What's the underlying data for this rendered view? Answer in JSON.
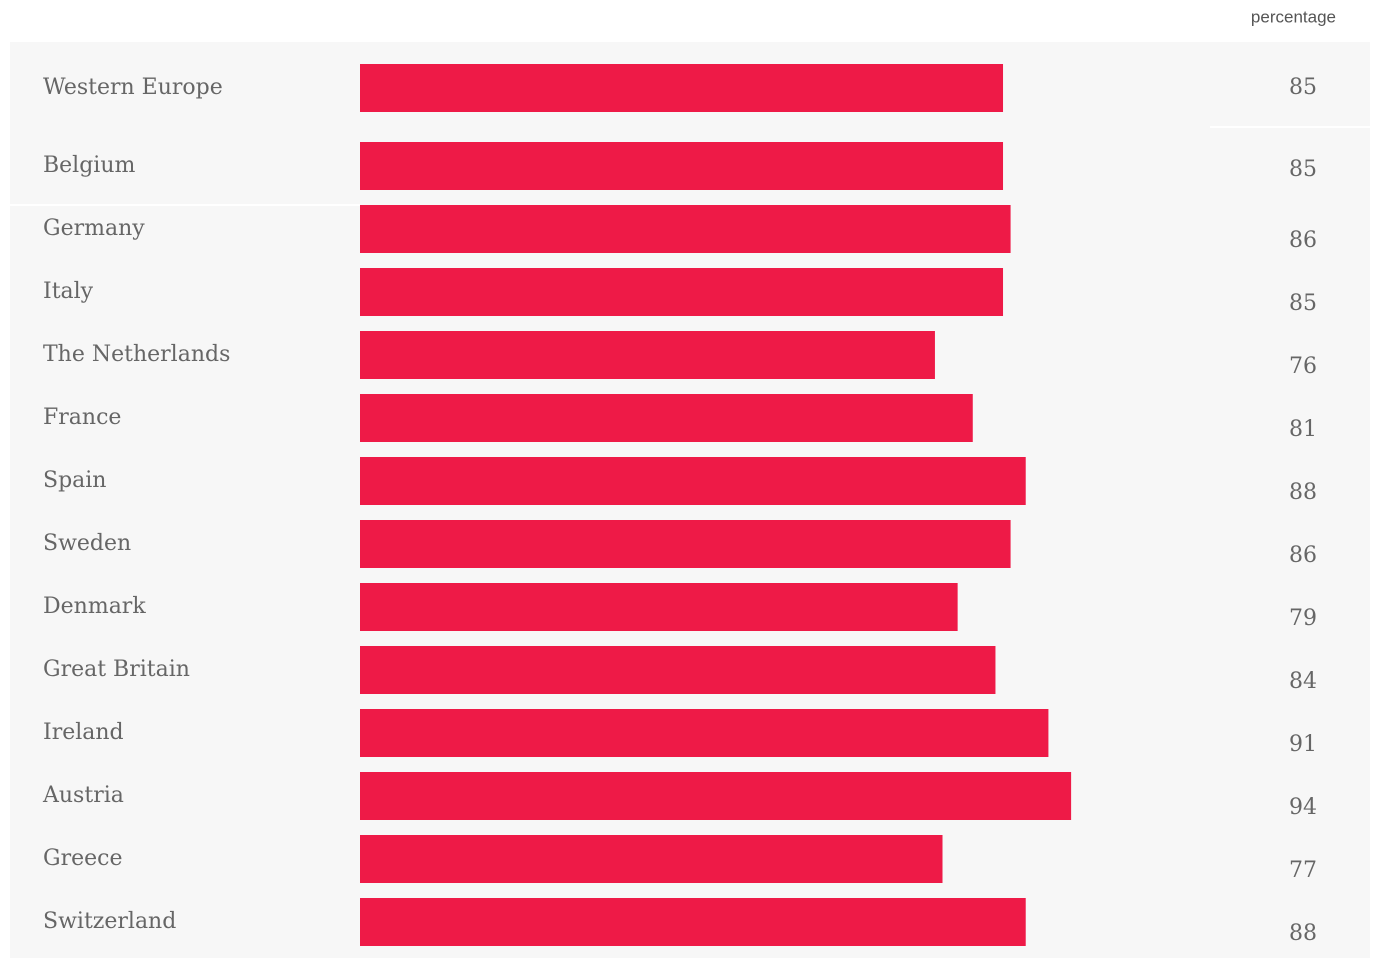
{
  "chart_data": {
    "type": "bar",
    "orientation": "horizontal",
    "value_axis_label": "percentage",
    "categories": [
      "Western Europe",
      "Belgium",
      "Germany",
      "Italy",
      "The Netherlands",
      "France",
      "Spain",
      "Sweden",
      "Denmark",
      "Great Britain",
      "Ireland",
      "Austria",
      "Greece",
      "Switzerland"
    ],
    "values": [
      85,
      85,
      86,
      85,
      76,
      81,
      88,
      86,
      79,
      84,
      91,
      94,
      77,
      88
    ],
    "color": "#ee1a47",
    "xlim": [
      0,
      100
    ]
  }
}
